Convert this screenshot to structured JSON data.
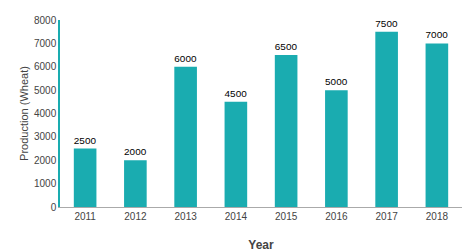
{
  "chart_data": {
    "type": "bar",
    "categories": [
      "2011",
      "2012",
      "2013",
      "2014",
      "2015",
      "2016",
      "2017",
      "2018"
    ],
    "values": [
      2500,
      2000,
      6000,
      4500,
      6500,
      5000,
      7500,
      7000
    ],
    "color": "#1AACB0",
    "xlabel": "Year",
    "ylabel": "Production (Wheat)",
    "ylim": [
      0,
      8000
    ],
    "yticks": [
      0,
      1000,
      2000,
      3000,
      4000,
      5000,
      6000,
      7000,
      8000
    ],
    "grid": false,
    "data_labels": true
  }
}
